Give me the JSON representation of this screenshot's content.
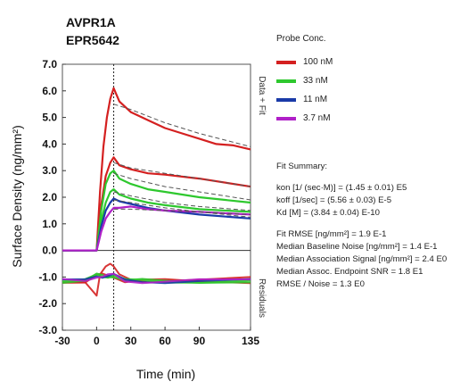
{
  "header": {
    "line1": "AVPR1A",
    "line2": "EPR5642"
  },
  "legend": {
    "title": "Probe Conc.",
    "items": [
      {
        "label": "100 nM",
        "color": "#d42020"
      },
      {
        "label": "33 nM",
        "color": "#2ec82e"
      },
      {
        "label": "11 nM",
        "color": "#1a3aa8"
      },
      {
        "label": "3.7 nM",
        "color": "#b020c8"
      }
    ]
  },
  "fit_summary": {
    "title": "Fit Summary:",
    "kinetics": [
      "kon  [1/ (sec·M)]  =   (1.45 ± 0.01) E5",
      "koff  [1/sec]  =   (5.56 ± 0.03) E-5",
      "Kd  [M]  =   (3.84 ± 0.04) E-10"
    ],
    "stats": [
      "Fit RMSE [ng/mm²]  =   1.9 E-1",
      "Median Baseline Noise [ng/mm²]  =  1.4 E-1",
      "Median Association Signal [ng/mm²]  =  2.4 E0",
      "Median Assoc. Endpoint SNR  =  1.8 E1",
      "RMSE / Noise  =  1.3 E0"
    ]
  },
  "chart_data": {
    "type": "line",
    "xlabel": "Time (min)",
    "ylabel": "Surface Density (ng/mm²)",
    "xlim": [
      -30,
      135
    ],
    "ylim": [
      -3.0,
      7.0
    ],
    "xticks": [
      "-30",
      "0",
      "30",
      "60",
      "90",
      "135"
    ],
    "yticks": [
      "7.0",
      "6.0",
      "5.0",
      "4.0",
      "3.0",
      "2.0",
      "1.0",
      "0.0",
      "-1.0",
      "-2.0",
      "-3.0"
    ],
    "right_labels": {
      "top": "Data + Fit",
      "bottom": "Residuals"
    },
    "dissociation_start_min": 15,
    "series": [
      {
        "name": "100 nM",
        "color": "#d42020",
        "x": [
          -30,
          0,
          3,
          6,
          9,
          12,
          15,
          20,
          30,
          45,
          60,
          75,
          90,
          105,
          120,
          135
        ],
        "y": [
          0,
          0,
          2.2,
          3.9,
          5.0,
          5.7,
          6.1,
          5.6,
          5.2,
          4.9,
          4.6,
          4.4,
          4.2,
          4.0,
          3.95,
          3.8
        ],
        "fit_x": [
          15,
          30,
          60,
          90,
          135
        ],
        "fit_y": [
          5.5,
          5.3,
          4.8,
          4.4,
          3.9
        ],
        "residual_x": [
          -30,
          -10,
          0,
          3,
          8,
          12,
          15,
          20,
          30,
          45,
          60,
          90,
          135
        ],
        "residual_y": [
          -1.2,
          -1.2,
          -1.7,
          -0.9,
          -0.6,
          -0.5,
          -0.6,
          -0.9,
          -1.1,
          -1.2,
          -1.15,
          -1.1,
          -1.0
        ]
      },
      {
        "name": "100 nM",
        "color": "#d42020",
        "x": [
          -30,
          0,
          4,
          8,
          12,
          15,
          20,
          30,
          45,
          60,
          90,
          135
        ],
        "y": [
          0,
          0,
          1.7,
          2.8,
          3.3,
          3.5,
          3.2,
          3.05,
          2.9,
          2.85,
          2.7,
          2.4
        ],
        "fit_x": [
          15,
          30,
          60,
          90,
          135
        ],
        "fit_y": [
          3.3,
          3.1,
          2.9,
          2.7,
          2.4
        ]
      },
      {
        "name": "33 nM",
        "color": "#2ec82e",
        "x": [
          -30,
          0,
          4,
          8,
          12,
          15,
          20,
          30,
          45,
          60,
          90,
          135
        ],
        "y": [
          0,
          0,
          1.5,
          2.5,
          2.9,
          3.0,
          2.7,
          2.5,
          2.3,
          2.2,
          2.0,
          1.8
        ],
        "fit_x": [
          15,
          30,
          60,
          90,
          135
        ],
        "fit_y": [
          2.9,
          2.7,
          2.4,
          2.2,
          1.9
        ]
      },
      {
        "name": "33 nM",
        "color": "#2ec82e",
        "x": [
          -30,
          0,
          4,
          8,
          12,
          15,
          20,
          30,
          45,
          60,
          90,
          135
        ],
        "y": [
          0,
          0,
          1.1,
          1.8,
          2.2,
          2.3,
          2.1,
          1.95,
          1.8,
          1.7,
          1.55,
          1.45
        ],
        "fit_x": [
          15,
          30,
          60,
          90,
          135
        ],
        "fit_y": [
          2.2,
          2.05,
          1.8,
          1.65,
          1.5
        ]
      },
      {
        "name": "11 nM",
        "color": "#1a3aa8",
        "x": [
          -30,
          0,
          4,
          8,
          12,
          15,
          20,
          30,
          45,
          60,
          90,
          135
        ],
        "y": [
          0,
          0,
          0.9,
          1.5,
          1.8,
          1.95,
          1.85,
          1.75,
          1.6,
          1.5,
          1.35,
          1.2
        ],
        "fit_x": [
          15,
          30,
          60,
          90,
          135
        ],
        "fit_y": [
          1.9,
          1.8,
          1.6,
          1.45,
          1.25
        ]
      },
      {
        "name": "3.7 nM",
        "color": "#b020c8",
        "x": [
          -30,
          0,
          4,
          8,
          12,
          15,
          20,
          30,
          45,
          60,
          90,
          135
        ],
        "y": [
          0,
          0,
          0.7,
          1.2,
          1.45,
          1.6,
          1.6,
          1.65,
          1.55,
          1.5,
          1.45,
          1.35
        ],
        "fit_x": [
          15,
          30,
          60,
          90,
          135
        ],
        "fit_y": [
          1.55,
          1.55,
          1.5,
          1.45,
          1.35
        ]
      }
    ]
  }
}
